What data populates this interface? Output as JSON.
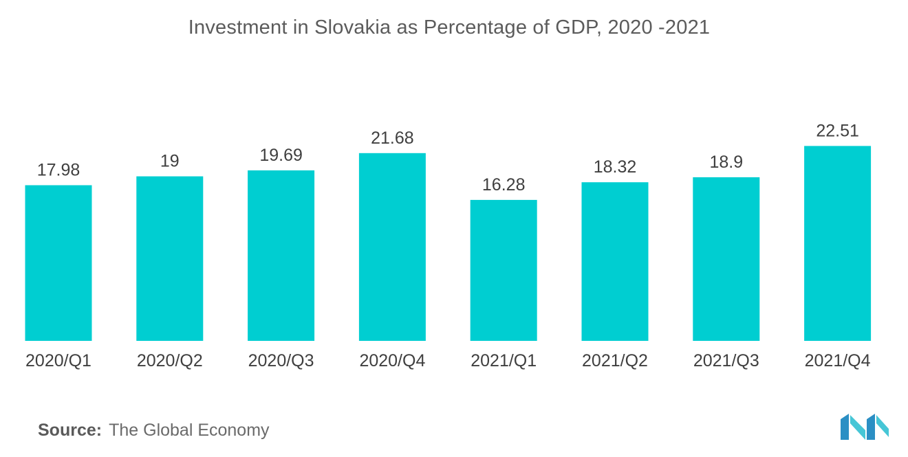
{
  "chart_data": {
    "type": "bar",
    "title": "Investment in Slovakia as Percentage of GDP, 2020 -2021",
    "categories": [
      "2020/Q1",
      "2020/Q2",
      "2020/Q3",
      "2020/Q4",
      "2021/Q1",
      "2021/Q2",
      "2021/Q3",
      "2021/Q4"
    ],
    "values": [
      17.98,
      19,
      19.69,
      21.68,
      16.28,
      18.32,
      18.9,
      22.51
    ],
    "value_labels": [
      "17.98",
      "19",
      "19.69",
      "21.68",
      "16.28",
      "18.32",
      "18.9",
      "22.51"
    ],
    "xlabel": "",
    "ylabel": "",
    "ylim": [
      0,
      25
    ],
    "grid": false,
    "legend": "none",
    "bar_color": "#00ced1"
  },
  "source": {
    "label": "Source:",
    "text": "The Global Economy"
  },
  "logo": {
    "icon": "mordor-intelligence-logo-icon",
    "colors": [
      "#2b8fc4",
      "#46c6d6"
    ]
  }
}
